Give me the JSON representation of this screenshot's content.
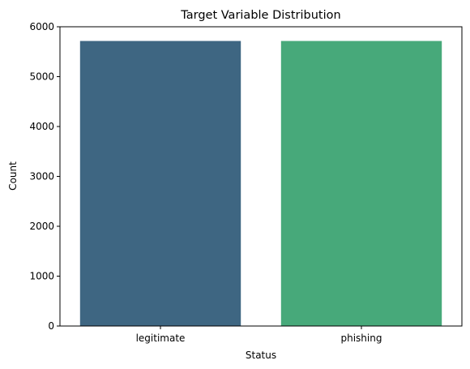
{
  "chart_data": {
    "type": "bar",
    "title": "Target Variable Distribution",
    "xlabel": "Status",
    "ylabel": "Count",
    "categories": [
      "legitimate",
      "phishing"
    ],
    "values": [
      5715,
      5715
    ],
    "colors": [
      "#3e6682",
      "#47a97a"
    ],
    "ylim": [
      0,
      6000
    ],
    "yticks": [
      0,
      1000,
      2000,
      3000,
      4000,
      5000,
      6000
    ],
    "grid": false,
    "legend": "none"
  }
}
